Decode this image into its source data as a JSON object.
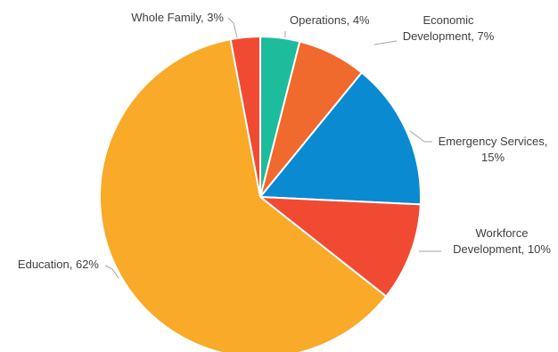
{
  "chart_data": {
    "type": "pie",
    "title": "",
    "start_angle_deg": 0,
    "direction": "clockwise",
    "slices": [
      {
        "name": "Operations",
        "value": 4,
        "color": "#1dbc9c",
        "label_lines": [
          "Operations, 4%"
        ]
      },
      {
        "name": "Economic Development",
        "value": 7,
        "color": "#f0692d",
        "label_lines": [
          "Economic",
          "Development, 7%"
        ]
      },
      {
        "name": "Emergency Services",
        "value": 15,
        "color": "#0a8ad1",
        "label_lines": [
          "Emergency Services,",
          "15%"
        ]
      },
      {
        "name": "Workforce Development",
        "value": 10,
        "color": "#f14a33",
        "label_lines": [
          "Workforce",
          "Development, 10%"
        ]
      },
      {
        "name": "Education",
        "value": 62,
        "color": "#f8aa28",
        "label_lines": [
          "Education, 62%"
        ]
      },
      {
        "name": "Whole Family",
        "value": 3,
        "color": "#f14a33",
        "label_lines": [
          "Whole Family, 3%"
        ]
      }
    ]
  }
}
